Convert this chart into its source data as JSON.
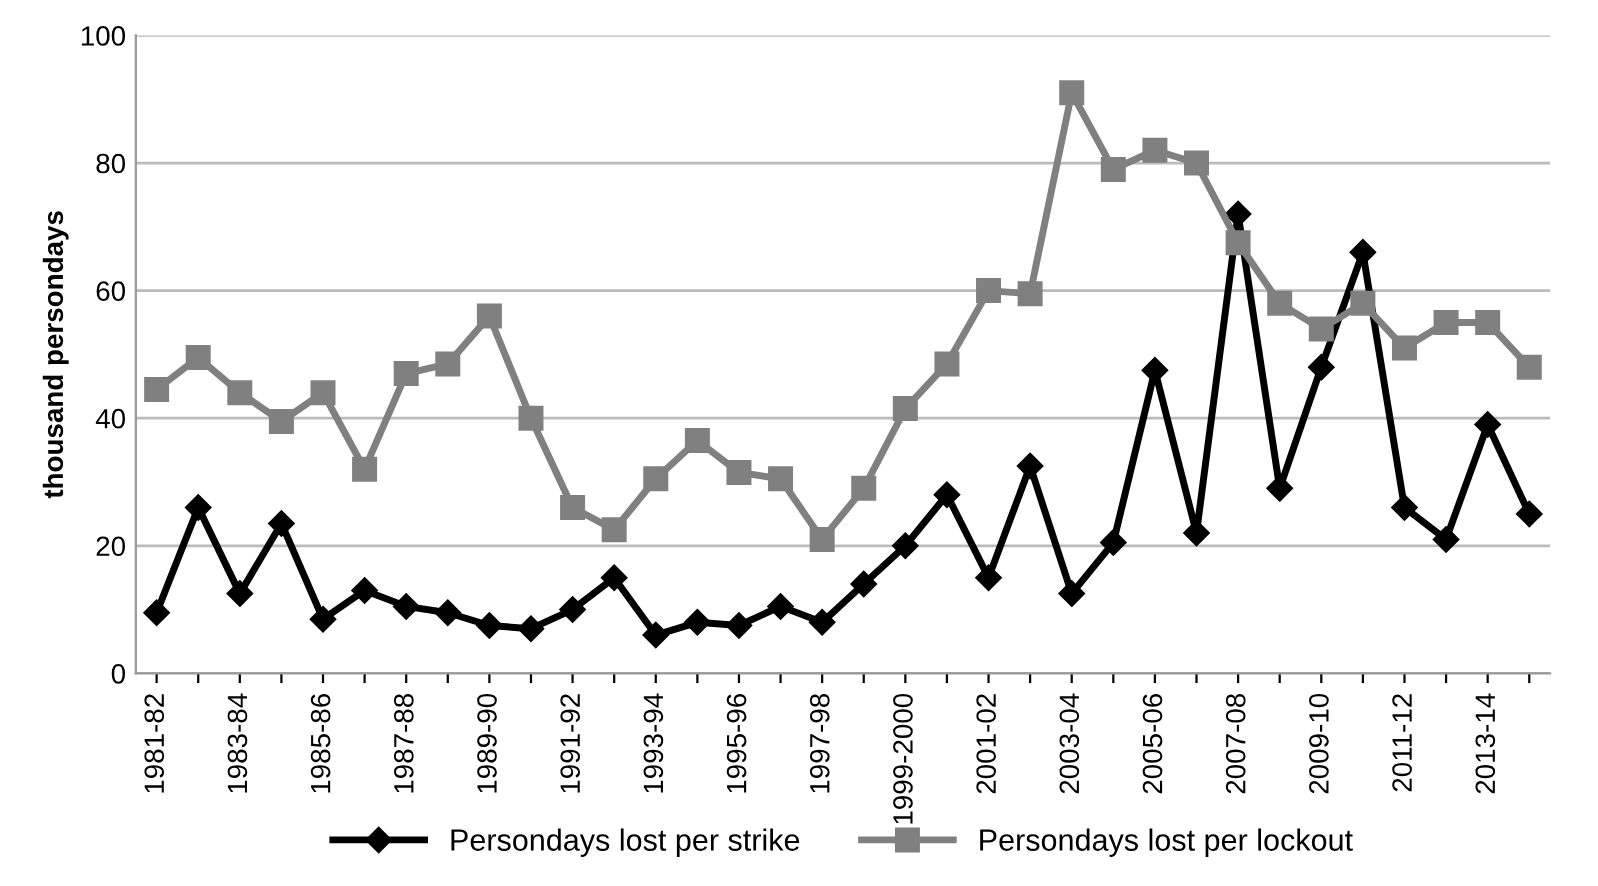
{
  "chart_data": {
    "type": "line",
    "ylabel": "thousand persondays",
    "categories": [
      "1981-82",
      null,
      "1983-84",
      null,
      "1985-86",
      null,
      "1987-88",
      null,
      "1989-90",
      null,
      "1991-92",
      null,
      "1993-94",
      null,
      "1995-96",
      null,
      "1997-98",
      null,
      "1999-2000",
      null,
      "2001-02",
      null,
      "2003-04",
      null,
      "2005-06",
      null,
      "2007-08",
      null,
      "2009-10",
      null,
      "2011-12",
      null,
      "2013-14",
      null
    ],
    "series": [
      {
        "name": "Persondays lost per strike",
        "color": "#000000",
        "marker": "diamond",
        "values": [
          9.5,
          26,
          12.5,
          23.5,
          8.5,
          13,
          10.5,
          9.5,
          7.5,
          7,
          10,
          15,
          6,
          8,
          7.5,
          10.5,
          8,
          14,
          20,
          28,
          15,
          32.5,
          12.5,
          20.5,
          47.5,
          22,
          72,
          29,
          48,
          66,
          26,
          21,
          39,
          25
        ]
      },
      {
        "name": "Persondays lost per lockout",
        "color": "#808080",
        "marker": "square",
        "values": [
          44.5,
          49.5,
          44,
          39.5,
          44,
          32,
          47,
          48.5,
          56,
          40,
          26,
          22.5,
          30.5,
          36.5,
          31.5,
          30.5,
          21,
          29,
          41.5,
          48.5,
          60,
          59.5,
          91,
          79,
          82,
          80,
          67.5,
          58,
          54,
          58,
          51,
          55,
          55,
          48
        ]
      }
    ],
    "ylim": [
      0,
      100
    ],
    "yticks": [
      0,
      20,
      40,
      60,
      80,
      100
    ],
    "grid": "y",
    "legend": "bottom",
    "line_style": "solid"
  }
}
